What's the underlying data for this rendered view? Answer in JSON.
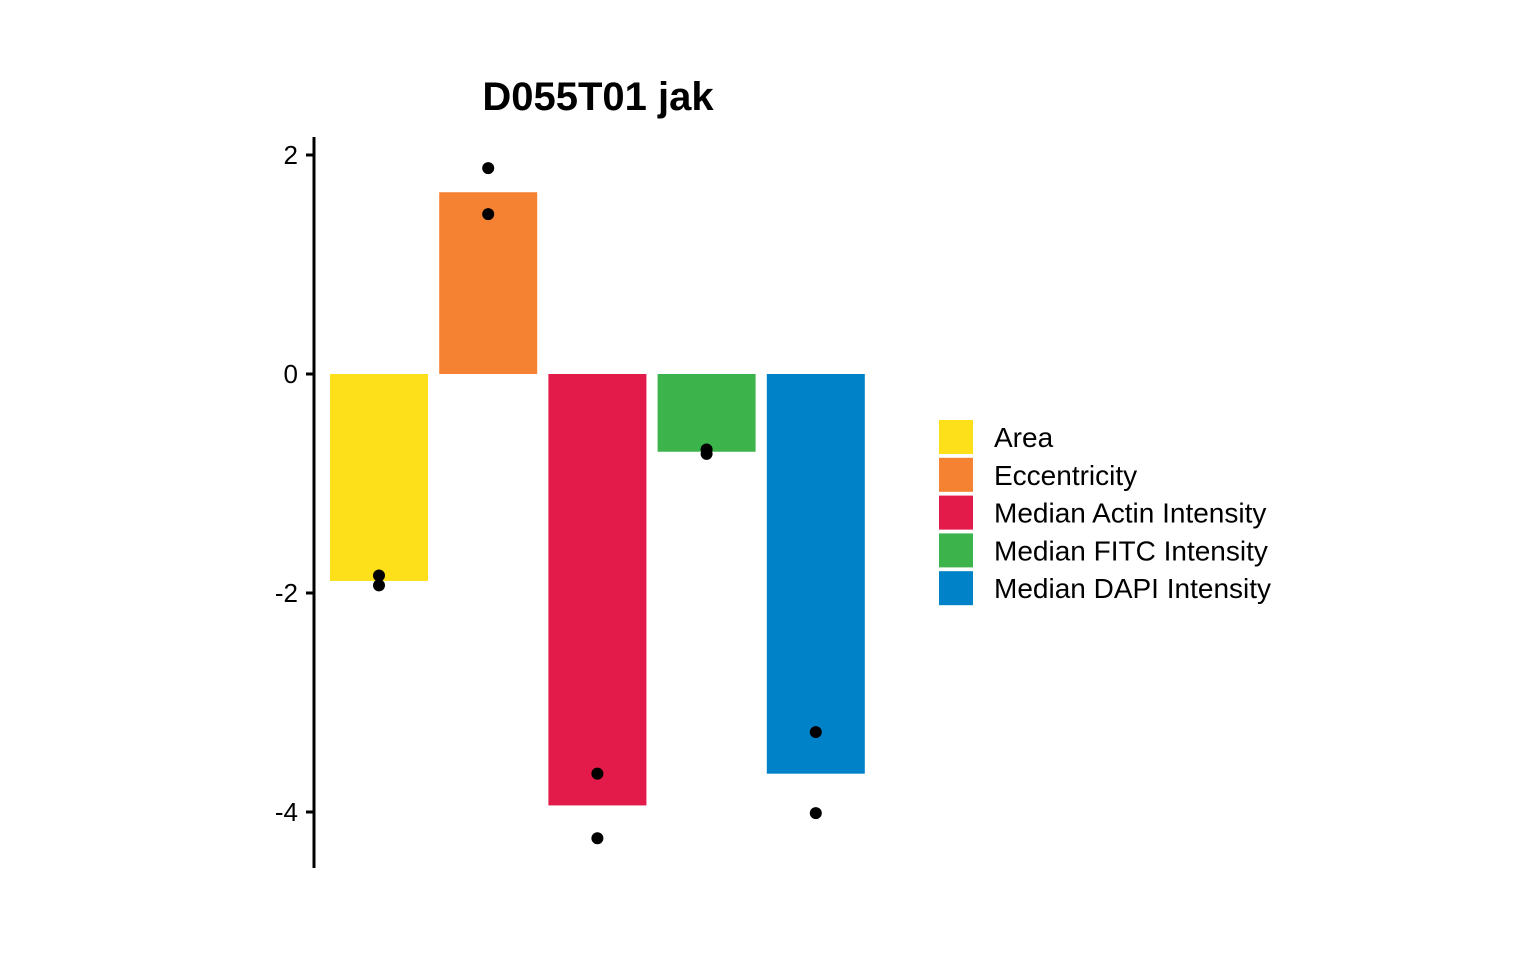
{
  "chart_data": {
    "type": "bar",
    "title": "D055T01 jak",
    "xlabel": "",
    "ylabel": "",
    "ylim": [
      -4.5,
      2.2
    ],
    "yticks": [
      2,
      0,
      -2,
      -4
    ],
    "ytick_labels": [
      "2",
      "0",
      "-2",
      "-4"
    ],
    "grid": false,
    "legend_position": "right",
    "categories": [
      "Area",
      "Eccentricity",
      "Median Actin Intensity",
      "Median FITC Intensity",
      "Median DAPI Intensity"
    ],
    "values": [
      -1.89,
      1.66,
      -3.94,
      -0.71,
      -3.65
    ],
    "colors": [
      "#FDE01A",
      "#F58233",
      "#E31B4B",
      "#3CB44B",
      "#0082C8"
    ],
    "points": [
      [
        -1.84,
        -1.93
      ],
      [
        1.88,
        1.46
      ],
      [
        -3.65,
        -4.24
      ],
      [
        -0.69,
        -0.73
      ],
      [
        -3.27,
        -4.01
      ]
    ]
  }
}
